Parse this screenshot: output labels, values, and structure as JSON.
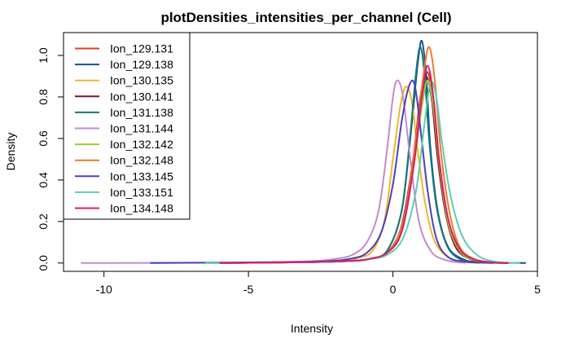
{
  "chart_data": {
    "type": "line",
    "title": "plotDensities_intensities_per_channel (Cell)",
    "xlabel": "Intensity",
    "ylabel": "Density",
    "xlim": [
      -11.4,
      5.0
    ],
    "ylim": [
      -0.04,
      1.11
    ],
    "xticks": [
      -10,
      -5,
      0,
      5
    ],
    "xtick_labels": [
      "-10",
      "-5",
      "0",
      "5"
    ],
    "yticks": [
      0.0,
      0.2,
      0.4,
      0.6,
      0.8,
      1.0
    ],
    "ytick_labels": [
      "0.0",
      "0.2",
      "0.4",
      "0.6",
      "0.8",
      "1.0"
    ],
    "grid": false,
    "legend_position": "top-left",
    "series": [
      {
        "name": "Ion_129.131",
        "color": "#e8401c",
        "x": [
          -6.0,
          -3.0,
          -1.5,
          -0.8,
          -0.2,
          0.3,
          0.7,
          1.0,
          1.2,
          1.4,
          1.6,
          1.9,
          2.3,
          2.8,
          3.4,
          4.0
        ],
        "y": [
          0.0,
          0.004,
          0.01,
          0.02,
          0.05,
          0.15,
          0.45,
          0.78,
          0.92,
          0.75,
          0.45,
          0.2,
          0.06,
          0.015,
          0.003,
          0.0
        ]
      },
      {
        "name": "Ion_129.138",
        "color": "#1f4e8c",
        "x": [
          -6.5,
          -3.0,
          -1.5,
          -0.8,
          -0.2,
          0.3,
          0.6,
          0.85,
          1.0,
          1.15,
          1.3,
          1.55,
          1.9,
          2.4,
          3.0,
          4.6
        ],
        "y": [
          0.0,
          0.004,
          0.01,
          0.02,
          0.06,
          0.25,
          0.6,
          0.95,
          1.07,
          0.9,
          0.55,
          0.25,
          0.08,
          0.02,
          0.004,
          0.0
        ]
      },
      {
        "name": "Ion_130.135",
        "color": "#f5b528",
        "x": [
          -6.0,
          -3.0,
          -1.8,
          -1.2,
          -0.7,
          -0.3,
          0.0,
          0.25,
          0.45,
          0.65,
          0.85,
          1.1,
          1.4,
          1.8,
          2.3,
          3.0
        ],
        "y": [
          0.0,
          0.004,
          0.01,
          0.025,
          0.06,
          0.2,
          0.5,
          0.75,
          0.85,
          0.78,
          0.55,
          0.3,
          0.12,
          0.04,
          0.008,
          0.0
        ]
      },
      {
        "name": "Ion_130.141",
        "color": "#7a1434",
        "x": [
          -6.0,
          -3.0,
          -1.5,
          -0.8,
          -0.2,
          0.3,
          0.7,
          0.95,
          1.15,
          1.35,
          1.55,
          1.85,
          2.2,
          2.7,
          3.3,
          4.0
        ],
        "y": [
          0.0,
          0.004,
          0.01,
          0.02,
          0.05,
          0.18,
          0.5,
          0.8,
          0.9,
          0.78,
          0.5,
          0.22,
          0.07,
          0.018,
          0.003,
          0.0
        ]
      },
      {
        "name": "Ion_131.138",
        "color": "#15787a",
        "x": [
          -6.0,
          -3.0,
          -1.5,
          -0.8,
          -0.2,
          0.3,
          0.6,
          0.8,
          0.95,
          1.1,
          1.25,
          1.5,
          1.85,
          2.3,
          2.9,
          4.0
        ],
        "y": [
          0.0,
          0.004,
          0.01,
          0.02,
          0.06,
          0.25,
          0.62,
          0.92,
          1.04,
          0.9,
          0.6,
          0.28,
          0.09,
          0.02,
          0.004,
          0.0
        ]
      },
      {
        "name": "Ion_131.144",
        "color": "#c48ad0",
        "x": [
          -10.8,
          -6.0,
          -3.0,
          -2.0,
          -1.4,
          -0.9,
          -0.5,
          -0.2,
          0.0,
          0.15,
          0.35,
          0.6,
          0.9,
          1.3,
          1.8,
          2.5
        ],
        "y": [
          0.0,
          0.002,
          0.008,
          0.02,
          0.04,
          0.1,
          0.25,
          0.55,
          0.8,
          0.88,
          0.8,
          0.5,
          0.2,
          0.06,
          0.015,
          0.0
        ]
      },
      {
        "name": "Ion_132.142",
        "color": "#9acd32",
        "x": [
          -6.5,
          -3.0,
          -1.5,
          -0.8,
          -0.2,
          0.3,
          0.7,
          1.0,
          1.2,
          1.4,
          1.6,
          1.9,
          2.3,
          2.8,
          3.4,
          4.0
        ],
        "y": [
          0.0,
          0.004,
          0.01,
          0.02,
          0.05,
          0.15,
          0.45,
          0.75,
          0.88,
          0.75,
          0.48,
          0.2,
          0.06,
          0.015,
          0.003,
          0.0
        ]
      },
      {
        "name": "Ion_132.148",
        "color": "#f07a2a",
        "x": [
          -6.0,
          -3.0,
          -1.5,
          -0.8,
          -0.2,
          0.35,
          0.75,
          1.05,
          1.25,
          1.45,
          1.65,
          1.95,
          2.3,
          2.8,
          3.4,
          4.0
        ],
        "y": [
          0.0,
          0.004,
          0.01,
          0.02,
          0.05,
          0.2,
          0.55,
          0.9,
          1.04,
          0.88,
          0.55,
          0.25,
          0.08,
          0.02,
          0.004,
          0.0
        ]
      },
      {
        "name": "Ion_133.145",
        "color": "#4a3fbf",
        "x": [
          -8.4,
          -5.0,
          -2.5,
          -1.5,
          -0.9,
          -0.4,
          0.0,
          0.3,
          0.55,
          0.75,
          0.95,
          1.2,
          1.5,
          1.9,
          2.5,
          3.5
        ],
        "y": [
          0.0,
          0.003,
          0.008,
          0.02,
          0.05,
          0.15,
          0.38,
          0.68,
          0.85,
          0.86,
          0.65,
          0.35,
          0.12,
          0.03,
          0.006,
          0.0
        ]
      },
      {
        "name": "Ion_133.151",
        "color": "#5ccfb0",
        "x": [
          -6.5,
          -3.0,
          -1.5,
          -0.8,
          -0.2,
          0.35,
          0.8,
          1.1,
          1.3,
          1.5,
          1.7,
          2.0,
          2.4,
          2.9,
          3.5,
          4.4
        ],
        "y": [
          0.0,
          0.004,
          0.01,
          0.02,
          0.04,
          0.12,
          0.35,
          0.68,
          0.87,
          0.8,
          0.58,
          0.32,
          0.13,
          0.04,
          0.008,
          0.0
        ]
      },
      {
        "name": "Ion_134.148",
        "color": "#d81b6a",
        "x": [
          -6.0,
          -3.0,
          -1.5,
          -0.8,
          -0.2,
          0.3,
          0.7,
          1.0,
          1.2,
          1.4,
          1.6,
          1.9,
          2.3,
          2.8,
          3.4,
          4.0
        ],
        "y": [
          0.0,
          0.004,
          0.01,
          0.02,
          0.05,
          0.15,
          0.45,
          0.8,
          0.95,
          0.8,
          0.5,
          0.22,
          0.07,
          0.018,
          0.003,
          0.0
        ]
      }
    ]
  }
}
